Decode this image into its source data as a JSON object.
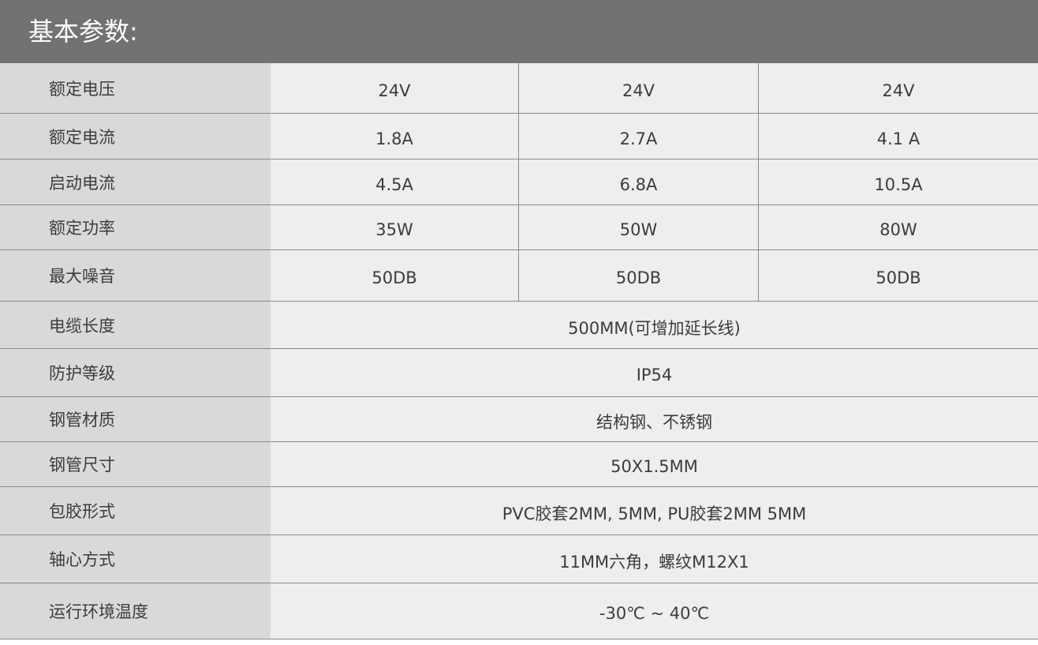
{
  "title": "基本参数:",
  "rows": [
    {
      "label": "额定电压",
      "values": [
        "24V",
        "24V",
        "24V"
      ]
    },
    {
      "label": "额定电流",
      "values": [
        "1.8A",
        "2.7A",
        "4.1 A"
      ]
    },
    {
      "label": "启动电流",
      "values": [
        "4.5A",
        "6.8A",
        "10.5A"
      ]
    },
    {
      "label": "额定功率",
      "values": [
        "35W",
        "50W",
        "80W"
      ]
    },
    {
      "label": "最大噪音",
      "values": [
        "50DB",
        "50DB",
        "50DB"
      ]
    },
    {
      "label": "电缆长度",
      "value": "500MM(可增加延长线)"
    },
    {
      "label": "防护等级",
      "value": "IP54"
    },
    {
      "label": "钢管材质",
      "value": "结构钢、不锈钢"
    },
    {
      "label": "钢管尺寸",
      "value": "50X1.5MM"
    },
    {
      "label": "包胶形式",
      "value": "PVC胶套2MM, 5MM, PU胶套2MM 5MM"
    },
    {
      "label": "轴心方式",
      "value": "11MM六角，螺纹M12X1"
    },
    {
      "label": "运行环境温度",
      "value": "-30℃ ~ 40℃"
    }
  ]
}
